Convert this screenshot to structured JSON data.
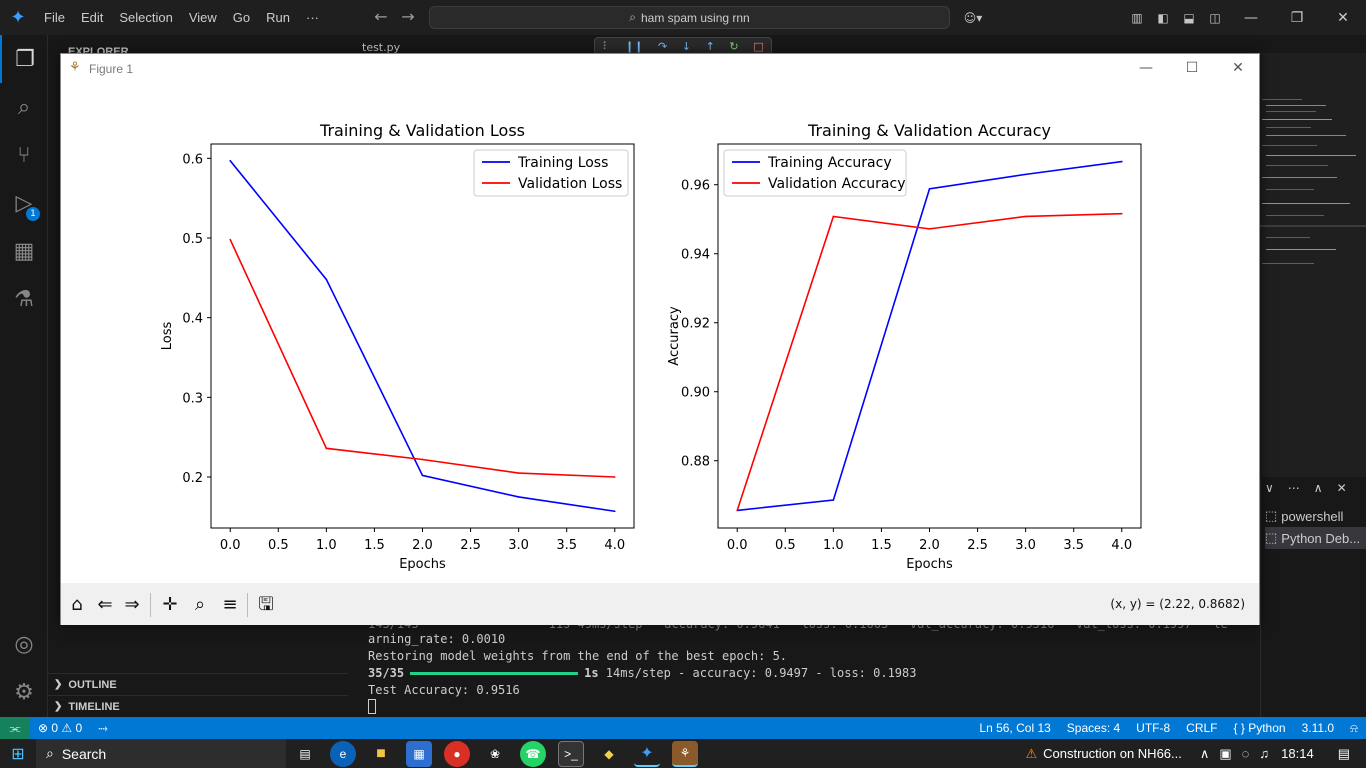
{
  "titlebar": {
    "menu": [
      "File",
      "Edit",
      "Selection",
      "View",
      "Go",
      "Run",
      "···"
    ],
    "search_text": "ham spam using rnn"
  },
  "sidebar": {
    "explorer_header": "EXPLORER",
    "outline": "OUTLINE",
    "timeline": "TIMELINE"
  },
  "activity": {
    "debug_badge": "1"
  },
  "editor": {
    "tab_label": "test.py"
  },
  "figure": {
    "title": "Figure 1",
    "coords": "(x, y) = (2.22, 0.8682)"
  },
  "chart_data": [
    {
      "type": "line",
      "title": "Training & Validation Loss",
      "xlabel": "Epochs",
      "ylabel": "Loss",
      "x": [
        0,
        1,
        2,
        3,
        4
      ],
      "series": [
        {
          "name": "Training Loss",
          "color": "#0000ff",
          "values": [
            0.597,
            0.448,
            0.202,
            0.175,
            0.157
          ]
        },
        {
          "name": "Validation Loss",
          "color": "#ff0000",
          "values": [
            0.498,
            0.236,
            0.222,
            0.205,
            0.2
          ]
        }
      ],
      "xlim": [
        -0.2,
        4.2
      ],
      "ylim": [
        0.136,
        0.618
      ],
      "xticks": [
        0.0,
        0.5,
        1.0,
        1.5,
        2.0,
        2.5,
        3.0,
        3.5,
        4.0
      ],
      "xtick_labels": [
        "0.0",
        "0.5",
        "1.0",
        "1.5",
        "2.0",
        "2.5",
        "3.0",
        "3.5",
        "4.0"
      ],
      "yticks": [
        0.2,
        0.3,
        0.4,
        0.5,
        0.6
      ],
      "ytick_labels": [
        "0.2",
        "0.3",
        "0.4",
        "0.5",
        "0.6"
      ],
      "legend": "top-right",
      "grid": false
    },
    {
      "type": "line",
      "title": "Training & Validation Accuracy",
      "xlabel": "Epochs",
      "ylabel": "Accuracy",
      "x": [
        0,
        1,
        2,
        3,
        4
      ],
      "series": [
        {
          "name": "Training Accuracy",
          "color": "#0000ff",
          "values": [
            0.8656,
            0.8686,
            0.9588,
            0.963,
            0.9667
          ]
        },
        {
          "name": "Validation Accuracy",
          "color": "#ff0000",
          "values": [
            0.8656,
            0.9508,
            0.9472,
            0.9508,
            0.9516
          ]
        }
      ],
      "xlim": [
        -0.2,
        4.2
      ],
      "ylim": [
        0.8605,
        0.9718
      ],
      "xticks": [
        0.0,
        0.5,
        1.0,
        1.5,
        2.0,
        2.5,
        3.0,
        3.5,
        4.0
      ],
      "xtick_labels": [
        "0.0",
        "0.5",
        "1.0",
        "1.5",
        "2.0",
        "2.5",
        "3.0",
        "3.5",
        "4.0"
      ],
      "yticks": [
        0.88,
        0.9,
        0.92,
        0.94,
        0.96
      ],
      "ytick_labels": [
        "0.88",
        "0.90",
        "0.92",
        "0.94",
        "0.96"
      ],
      "legend": "top-left",
      "grid": false
    }
  ],
  "terminal": {
    "line0": "143/143                  11s 49ms/step - accuracy: 0.9641 - loss: 0.1663 - val_accuracy: 0.9516 - val_loss: 0.1997 - le",
    "line1": "arning_rate: 0.0010",
    "line2": "Restoring model weights from the end of the best epoch: 5.",
    "line3_a": "35/35",
    "line3_b": "1s",
    "line3_c": " 14ms/step - accuracy: 0.9497 - loss: 0.1983",
    "line4": "Test Accuracy: 0.9516"
  },
  "terminal_list": {
    "items": [
      "powershell",
      "Python Deb..."
    ]
  },
  "statusbar": {
    "errors": "0",
    "warnings": "0",
    "position": "Ln 56, Col 13",
    "spaces": "Spaces: 4",
    "encoding": "UTF-8",
    "eol": "CRLF",
    "language": "Python",
    "version": "3.11.0"
  },
  "taskbar": {
    "search": "Search",
    "notification": "Construction on NH66...",
    "time": "18:14"
  }
}
